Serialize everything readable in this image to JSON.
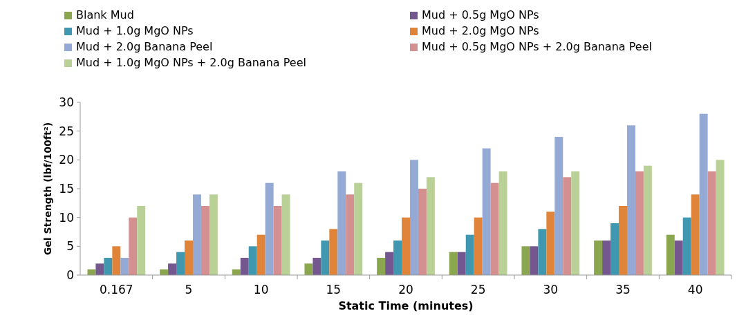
{
  "chart_data": {
    "type": "bar",
    "xlabel": "Static Time (minutes)",
    "ylabel": "Gel Strength (lbf/100ft²)",
    "categories": [
      "0.167",
      "5",
      "10",
      "15",
      "20",
      "25",
      "30",
      "35",
      "40"
    ],
    "series": [
      {
        "name": "Blank Mud",
        "color": "#8aa64e",
        "values": [
          1,
          1,
          1,
          2,
          3,
          4,
          5,
          6,
          7
        ]
      },
      {
        "name": "Mud + 0.5g MgO NPs",
        "color": "#74578f",
        "values": [
          2,
          2,
          3,
          3,
          4,
          4,
          5,
          6,
          6
        ]
      },
      {
        "name": "Mud + 1.0g MgO NPs",
        "color": "#3f97b0",
        "values": [
          3,
          4,
          5,
          6,
          6,
          7,
          8,
          9,
          10
        ]
      },
      {
        "name": "Mud + 2.0g MgO NPs",
        "color": "#e0843a",
        "values": [
          5,
          6,
          7,
          8,
          10,
          10,
          11,
          12,
          14
        ]
      },
      {
        "name": "Mud + 2.0g Banana Peel",
        "color": "#94aad4",
        "values": [
          3,
          14,
          16,
          18,
          20,
          22,
          24,
          26,
          28
        ]
      },
      {
        "name": "Mud + 0.5g MgO NPs + 2.0g Banana Peel",
        "color": "#d49090",
        "values": [
          10,
          12,
          12,
          14,
          15,
          16,
          17,
          18,
          18
        ]
      },
      {
        "name": "Mud + 1.0g MgO NPs + 2.0g Banana Peel",
        "color": "#b9d097",
        "values": [
          12,
          14,
          14,
          16,
          17,
          18,
          18,
          19,
          20
        ]
      }
    ],
    "ylim": [
      0,
      30
    ],
    "yticks": [
      0,
      5,
      10,
      15,
      20,
      25,
      30
    ],
    "grid": false,
    "legend": "top"
  }
}
